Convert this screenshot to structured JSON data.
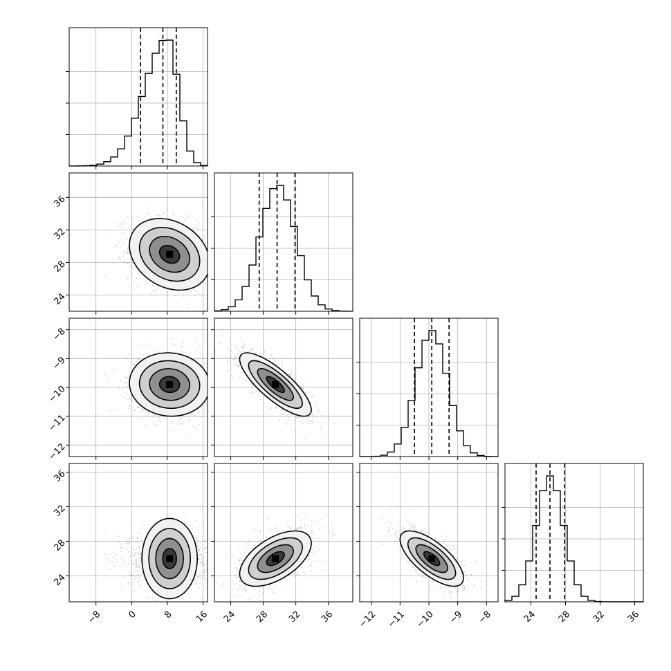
{
  "chart_data": {
    "type": "corner",
    "grid": true,
    "colors": {
      "line": "#000000",
      "grid": "#b0b0b0",
      "scatter": "#9a9a9a",
      "density": "#000000"
    },
    "params": [
      {
        "id": "p0",
        "range": [
          -14,
          17
        ],
        "ticks": [
          -8,
          0,
          8,
          16
        ],
        "tick_labels": [
          "−8",
          "0",
          "8",
          "16"
        ],
        "mean": 8,
        "sd": 4.5,
        "quantiles": [
          2,
          7,
          10
        ]
      },
      {
        "id": "p1",
        "range": [
          22,
          39
        ],
        "ticks": [
          24,
          28,
          32,
          36
        ],
        "tick_labels": [
          "24",
          "28",
          "32",
          "36"
        ],
        "mean": 29.8,
        "sd": 2.2,
        "quantiles": [
          27.5,
          29.7,
          31.9
        ]
      },
      {
        "id": "p2",
        "range": [
          -12.4,
          -7.6
        ],
        "ticks": [
          -12,
          -11,
          -10,
          -9,
          -8
        ],
        "tick_labels": [
          "−12",
          "−11",
          "−10",
          "−9",
          "−8"
        ],
        "mean": -9.9,
        "sd": 0.55,
        "quantiles": [
          -10.5,
          -9.9,
          -9.3
        ]
      },
      {
        "id": "p3",
        "range": [
          21,
          37
        ],
        "ticks": [
          24,
          28,
          32,
          36
        ],
        "tick_labels": [
          "24",
          "28",
          "32",
          "36"
        ],
        "mean": 26.2,
        "sd": 1.6,
        "quantiles": [
          24.6,
          26.2,
          27.9
        ]
      }
    ],
    "histograms": [
      {
        "param": "p0",
        "bins": [
          -14,
          17
        ],
        "peak_x": 8.0,
        "ymax_scale": 1.0
      },
      {
        "param": "p1",
        "bins": [
          22,
          39
        ],
        "peak_x": 29.5,
        "ymax_scale": 1.0
      },
      {
        "param": "p2",
        "bins": [
          -12.4,
          -7.6
        ],
        "peak_x": -9.9,
        "ymax_scale": 1.0
      },
      {
        "param": "p3",
        "bins": [
          21,
          37
        ],
        "peak_x": 26.0,
        "ymax_scale": 1.0
      }
    ],
    "pairs": [
      {
        "x": "p0",
        "y": "p1",
        "rho": -0.25,
        "peak": [
          8.5,
          29.0
        ]
      },
      {
        "x": "p0",
        "y": "p2",
        "rho": -0.05,
        "peak": [
          8.5,
          -9.9
        ]
      },
      {
        "x": "p1",
        "y": "p2",
        "rho": -0.8,
        "peak": [
          29.5,
          -9.9
        ]
      },
      {
        "x": "p0",
        "y": "p3",
        "rho": 0.0,
        "peak": [
          8.5,
          26.0
        ]
      },
      {
        "x": "p1",
        "y": "p3",
        "rho": 0.55,
        "peak": [
          29.5,
          26.0
        ]
      },
      {
        "x": "p2",
        "y": "p3",
        "rho": -0.7,
        "peak": [
          -9.9,
          26.0
        ]
      }
    ],
    "contour_levels_sigma": [
      0.5,
      1.0,
      1.5,
      2.0
    ],
    "histogram_bins": 20
  }
}
